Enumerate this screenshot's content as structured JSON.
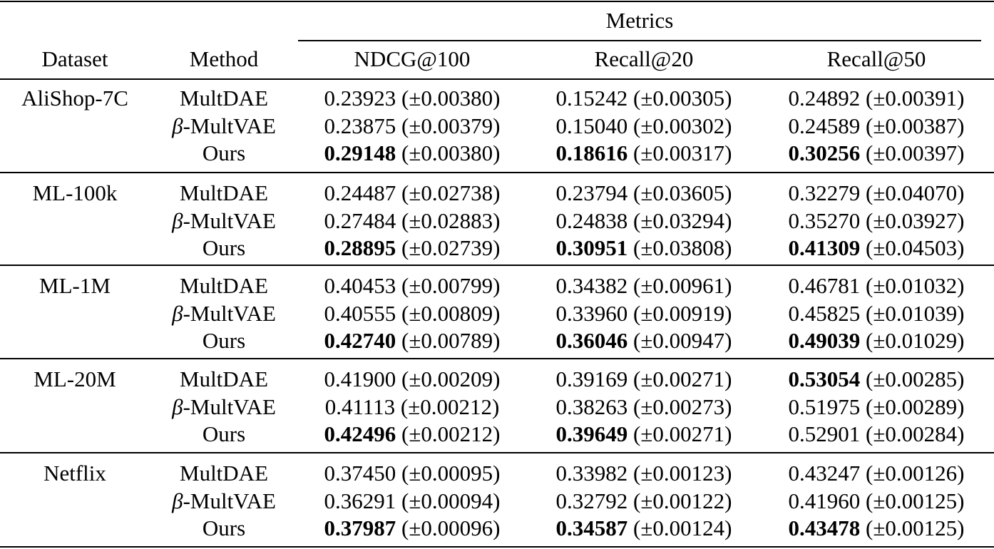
{
  "header": {
    "group_label": "Metrics",
    "dataset_label": "Dataset",
    "method_label": "Method",
    "metric_labels": [
      "NDCG@100",
      "Recall@20",
      "Recall@50"
    ]
  },
  "groups": [
    {
      "dataset": "AliShop-7C",
      "rows": [
        {
          "method_prefix": "",
          "method_name": "MultDAE",
          "cells": [
            {
              "value": "0.23923",
              "std": "(±0.00380)",
              "best": false
            },
            {
              "value": "0.15242",
              "std": "(±0.00305)",
              "best": false
            },
            {
              "value": "0.24892",
              "std": "(±0.00391)",
              "best": false
            }
          ]
        },
        {
          "method_prefix": "β",
          "method_name": "-MultVAE",
          "cells": [
            {
              "value": "0.23875",
              "std": "(±0.00379)",
              "best": false
            },
            {
              "value": "0.15040",
              "std": "(±0.00302)",
              "best": false
            },
            {
              "value": "0.24589",
              "std": "(±0.00387)",
              "best": false
            }
          ]
        },
        {
          "method_prefix": "",
          "method_name": "Ours",
          "cells": [
            {
              "value": "0.29148",
              "std": "(±0.00380)",
              "best": true
            },
            {
              "value": "0.18616",
              "std": "(±0.00317)",
              "best": true
            },
            {
              "value": "0.30256",
              "std": "(±0.00397)",
              "best": true
            }
          ]
        }
      ]
    },
    {
      "dataset": "ML-100k",
      "rows": [
        {
          "method_prefix": "",
          "method_name": "MultDAE",
          "cells": [
            {
              "value": "0.24487",
              "std": "(±0.02738)",
              "best": false
            },
            {
              "value": "0.23794",
              "std": "(±0.03605)",
              "best": false
            },
            {
              "value": "0.32279",
              "std": "(±0.04070)",
              "best": false
            }
          ]
        },
        {
          "method_prefix": "β",
          "method_name": "-MultVAE",
          "cells": [
            {
              "value": "0.27484",
              "std": "(±0.02883)",
              "best": false
            },
            {
              "value": "0.24838",
              "std": "(±0.03294)",
              "best": false
            },
            {
              "value": "0.35270",
              "std": "(±0.03927)",
              "best": false
            }
          ]
        },
        {
          "method_prefix": "",
          "method_name": "Ours",
          "cells": [
            {
              "value": "0.28895",
              "std": "(±0.02739)",
              "best": true
            },
            {
              "value": "0.30951",
              "std": "(±0.03808)",
              "best": true
            },
            {
              "value": "0.41309",
              "std": "(±0.04503)",
              "best": true
            }
          ]
        }
      ]
    },
    {
      "dataset": "ML-1M",
      "rows": [
        {
          "method_prefix": "",
          "method_name": "MultDAE",
          "cells": [
            {
              "value": "0.40453",
              "std": "(±0.00799)",
              "best": false
            },
            {
              "value": "0.34382",
              "std": "(±0.00961)",
              "best": false
            },
            {
              "value": "0.46781",
              "std": "(±0.01032)",
              "best": false
            }
          ]
        },
        {
          "method_prefix": "β",
          "method_name": "-MultVAE",
          "cells": [
            {
              "value": "0.40555",
              "std": "(±0.00809)",
              "best": false
            },
            {
              "value": "0.33960",
              "std": "(±0.00919)",
              "best": false
            },
            {
              "value": "0.45825",
              "std": "(±0.01039)",
              "best": false
            }
          ]
        },
        {
          "method_prefix": "",
          "method_name": "Ours",
          "cells": [
            {
              "value": "0.42740",
              "std": "(±0.00789)",
              "best": true
            },
            {
              "value": "0.36046",
              "std": "(±0.00947)",
              "best": true
            },
            {
              "value": "0.49039",
              "std": "(±0.01029)",
              "best": true
            }
          ]
        }
      ]
    },
    {
      "dataset": "ML-20M",
      "rows": [
        {
          "method_prefix": "",
          "method_name": "MultDAE",
          "cells": [
            {
              "value": "0.41900",
              "std": "(±0.00209)",
              "best": false
            },
            {
              "value": "0.39169",
              "std": "(±0.00271)",
              "best": false
            },
            {
              "value": "0.53054",
              "std": "(±0.00285)",
              "best": true
            }
          ]
        },
        {
          "method_prefix": "β",
          "method_name": "-MultVAE",
          "cells": [
            {
              "value": "0.41113",
              "std": "(±0.00212)",
              "best": false
            },
            {
              "value": "0.38263",
              "std": "(±0.00273)",
              "best": false
            },
            {
              "value": "0.51975",
              "std": "(±0.00289)",
              "best": false
            }
          ]
        },
        {
          "method_prefix": "",
          "method_name": "Ours",
          "cells": [
            {
              "value": "0.42496",
              "std": "(±0.00212)",
              "best": true
            },
            {
              "value": "0.39649",
              "std": "(±0.00271)",
              "best": true
            },
            {
              "value": "0.52901",
              "std": "(±0.00284)",
              "best": false
            }
          ]
        }
      ]
    },
    {
      "dataset": "Netflix",
      "rows": [
        {
          "method_prefix": "",
          "method_name": "MultDAE",
          "cells": [
            {
              "value": "0.37450",
              "std": "(±0.00095)",
              "best": false
            },
            {
              "value": "0.33982",
              "std": "(±0.00123)",
              "best": false
            },
            {
              "value": "0.43247",
              "std": "(±0.00126)",
              "best": false
            }
          ]
        },
        {
          "method_prefix": "β",
          "method_name": "-MultVAE",
          "cells": [
            {
              "value": "0.36291",
              "std": "(±0.00094)",
              "best": false
            },
            {
              "value": "0.32792",
              "std": "(±0.00122)",
              "best": false
            },
            {
              "value": "0.41960",
              "std": "(±0.00125)",
              "best": false
            }
          ]
        },
        {
          "method_prefix": "",
          "method_name": "Ours",
          "cells": [
            {
              "value": "0.37987",
              "std": "(±0.00096)",
              "best": true
            },
            {
              "value": "0.34587",
              "std": "(±0.00124)",
              "best": true
            },
            {
              "value": "0.43478",
              "std": "(±0.00125)",
              "best": true
            }
          ]
        }
      ]
    }
  ]
}
